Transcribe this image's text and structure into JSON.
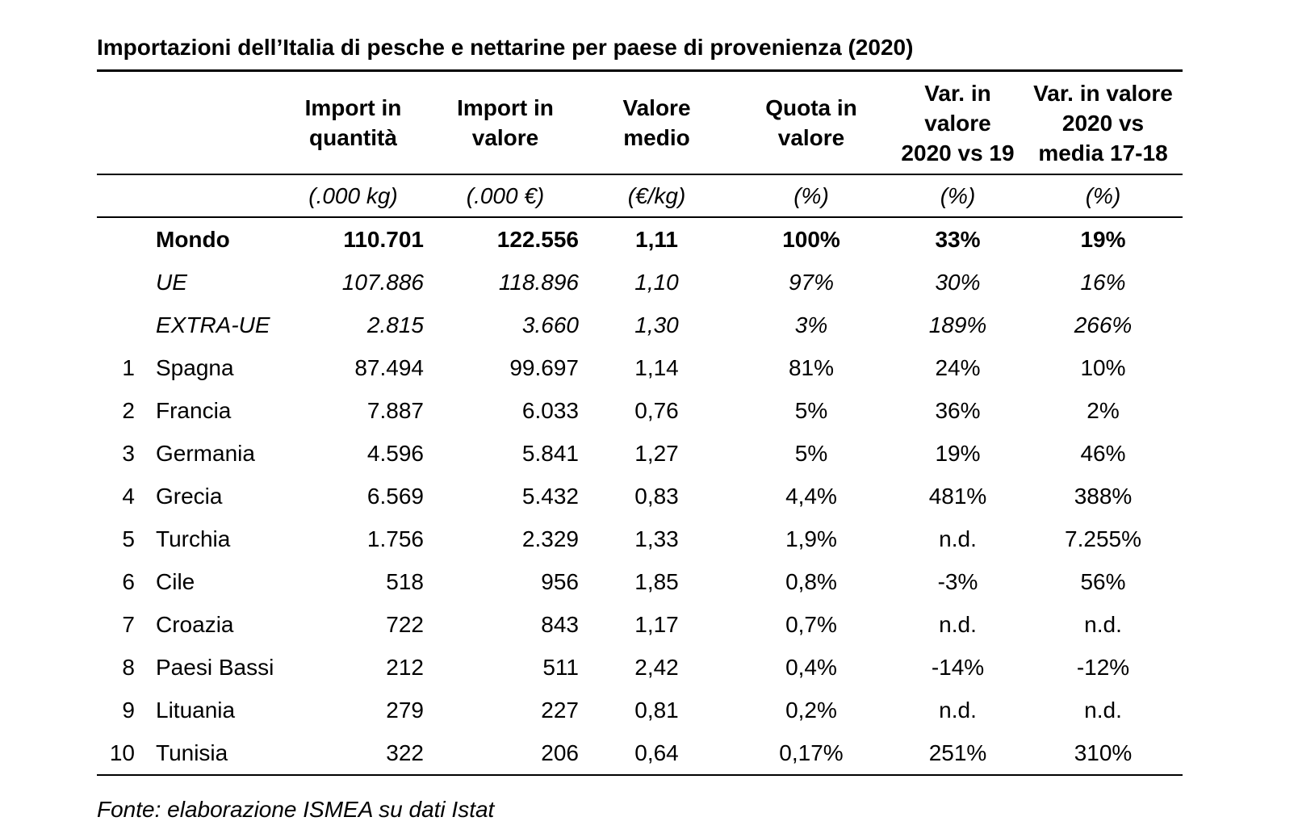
{
  "title": "Importazioni dell’Italia di pesche e nettarine per paese di provenienza (2020)",
  "table": {
    "columns": [
      "Import in\nquantità",
      "Import in\nvalore",
      "Valore\nmedio",
      "Quota in\nvalore",
      "Var. in\nvalore\n2020 vs 19",
      "Var. in valore\n2020 vs\nmedia 17-18"
    ],
    "units": [
      "(.000 kg)",
      "(.000 €)",
      "(€/kg)",
      "(%)",
      "(%)",
      "(%)"
    ],
    "rows": [
      {
        "rank": "",
        "name": "Mondo",
        "emphasis": "bold",
        "values": [
          "110.701",
          "122.556",
          "1,11",
          "100%",
          "33%",
          "19%"
        ]
      },
      {
        "rank": "",
        "name": "UE",
        "emphasis": "italic",
        "values": [
          "107.886",
          "118.896",
          "1,10",
          "97%",
          "30%",
          "16%"
        ]
      },
      {
        "rank": "",
        "name": "EXTRA-UE",
        "emphasis": "italic",
        "values": [
          "2.815",
          "3.660",
          "1,30",
          "3%",
          "189%",
          "266%"
        ]
      },
      {
        "rank": "1",
        "name": "Spagna",
        "emphasis": "normal",
        "values": [
          "87.494",
          "99.697",
          "1,14",
          "81%",
          "24%",
          "10%"
        ]
      },
      {
        "rank": "2",
        "name": "Francia",
        "emphasis": "normal",
        "values": [
          "7.887",
          "6.033",
          "0,76",
          "5%",
          "36%",
          "2%"
        ]
      },
      {
        "rank": "3",
        "name": "Germania",
        "emphasis": "normal",
        "values": [
          "4.596",
          "5.841",
          "1,27",
          "5%",
          "19%",
          "46%"
        ]
      },
      {
        "rank": "4",
        "name": "Grecia",
        "emphasis": "normal",
        "values": [
          "6.569",
          "5.432",
          "0,83",
          "4,4%",
          "481%",
          "388%"
        ]
      },
      {
        "rank": "5",
        "name": "Turchia",
        "emphasis": "normal",
        "values": [
          "1.756",
          "2.329",
          "1,33",
          "1,9%",
          "n.d.",
          "7.255%"
        ]
      },
      {
        "rank": "6",
        "name": "Cile",
        "emphasis": "normal",
        "values": [
          "518",
          "956",
          "1,85",
          "0,8%",
          "-3%",
          "56%"
        ]
      },
      {
        "rank": "7",
        "name": "Croazia",
        "emphasis": "normal",
        "values": [
          "722",
          "843",
          "1,17",
          "0,7%",
          "n.d.",
          "n.d."
        ]
      },
      {
        "rank": "8",
        "name": "Paesi Bassi",
        "emphasis": "normal",
        "values": [
          "212",
          "511",
          "2,42",
          "0,4%",
          "-14%",
          "-12%"
        ]
      },
      {
        "rank": "9",
        "name": "Lituania",
        "emphasis": "normal",
        "values": [
          "279",
          "227",
          "0,81",
          "0,2%",
          "n.d.",
          "n.d."
        ]
      },
      {
        "rank": "10",
        "name": "Tunisia",
        "emphasis": "normal",
        "values": [
          "322",
          "206",
          "0,64",
          "0,17%",
          "251%",
          "310%"
        ]
      }
    ]
  },
  "source_note": "Fonte: elaborazione ISMEA su dati Istat"
}
